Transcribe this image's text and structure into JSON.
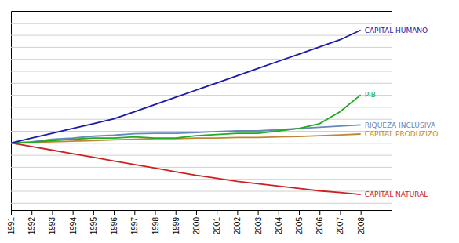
{
  "chart_data": {
    "type": "line",
    "x": [
      1991,
      1992,
      1993,
      1994,
      1995,
      1996,
      1997,
      1998,
      1999,
      2000,
      2001,
      2002,
      2003,
      2004,
      2005,
      2006,
      2007,
      2008
    ],
    "xlim": [
      1991,
      2009.5
    ],
    "xticks": [
      1991,
      1992,
      1993,
      1994,
      1995,
      1996,
      1997,
      1998,
      1999,
      2000,
      2001,
      2002,
      2003,
      2004,
      2005,
      2006,
      2007,
      2008
    ],
    "ylim": [
      72,
      155
    ],
    "yticks": [
      75,
      80,
      85,
      90,
      95,
      100,
      105,
      110,
      115,
      120,
      125,
      130,
      135,
      140,
      145,
      150
    ],
    "grid": true,
    "tick_labels": "x",
    "series": [
      {
        "name": "CAPITAL HUMANO",
        "color": "#1a1aaa",
        "values": [
          100,
          102,
          104,
          106,
          108,
          110,
          113,
          116,
          119,
          122,
          125,
          128,
          131,
          134,
          137,
          140,
          143,
          147
        ]
      },
      {
        "name": "PIB",
        "color": "#22aa22",
        "values": [
          100,
          100.2,
          101,
          101.5,
          102,
          102,
          102.5,
          102,
          102,
          103,
          103.5,
          104,
          104,
          105,
          106,
          108,
          113,
          120
        ]
      },
      {
        "name": "RIQUEZA INCLUSIVA",
        "color": "#6688bb",
        "values": [
          100,
          100.5,
          101.5,
          102,
          102.8,
          103.2,
          103.8,
          104,
          104,
          104.3,
          104.7,
          105,
          105,
          105.5,
          106,
          106.5,
          107,
          107.5
        ]
      },
      {
        "name": "CAPITAL PRODUZIZO",
        "color": "#bb8833",
        "values": [
          100,
          100.2,
          100.5,
          100.7,
          101,
          101.3,
          101.5,
          101.8,
          101.8,
          102,
          102,
          102.3,
          102.3,
          102.5,
          102.7,
          103,
          103.3,
          103.7
        ]
      },
      {
        "name": "CAPITAL NATURAL",
        "color": "#cc2222",
        "values": [
          100,
          98.5,
          97,
          95.5,
          94,
          92.5,
          91,
          89.5,
          88,
          86.5,
          85.3,
          84,
          83,
          82,
          81,
          80,
          79.3,
          78.5
        ]
      }
    ]
  }
}
